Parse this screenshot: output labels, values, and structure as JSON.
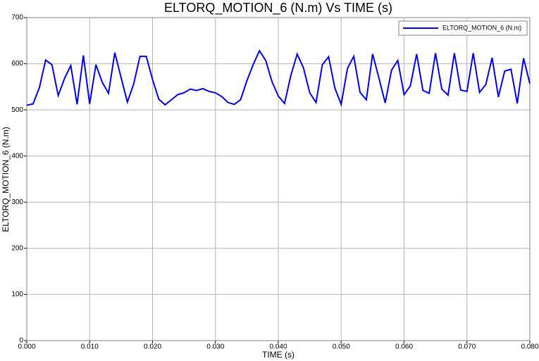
{
  "chart_data": {
    "type": "line",
    "title": "ELTORQ_MOTION_6  (N.m) Vs TIME (s)",
    "x_label": "TIME (s)",
    "y_label": "ELTORQ_MOTION_6  (N.m)",
    "x": [
      0,
      0.001,
      0.002,
      0.003,
      0.004,
      0.005,
      0.006,
      0.007,
      0.008,
      0.009,
      0.01,
      0.011,
      0.012,
      0.013,
      0.014,
      0.015,
      0.016,
      0.017,
      0.018,
      0.019,
      0.02,
      0.021,
      0.022,
      0.023,
      0.024,
      0.025,
      0.026,
      0.027,
      0.028,
      0.029,
      0.03,
      0.031,
      0.032,
      0.033,
      0.034,
      0.035,
      0.036,
      0.037,
      0.038,
      0.039,
      0.04,
      0.041,
      0.042,
      0.043,
      0.044,
      0.045,
      0.046,
      0.047,
      0.048,
      0.049,
      0.05,
      0.051,
      0.052,
      0.053,
      0.054,
      0.055,
      0.056,
      0.057,
      0.058,
      0.059,
      0.06,
      0.061,
      0.062,
      0.063,
      0.064,
      0.065,
      0.066,
      0.067,
      0.068,
      0.069,
      0.07,
      0.071,
      0.072,
      0.073,
      0.074,
      0.075,
      0.076,
      0.077,
      0.078,
      0.079,
      0.08
    ],
    "series": [
      {
        "name": "ELTORQ_MOTION_6 (N.m)",
        "color": "#0000e6",
        "values": [
          510,
          513,
          548,
          608,
          598,
          531,
          568,
          596,
          512,
          618,
          513,
          598,
          560,
          536,
          624,
          570,
          517,
          556,
          616,
          616,
          566,
          523,
          511,
          522,
          533,
          537,
          545,
          542,
          546,
          540,
          537,
          529,
          516,
          512,
          522,
          563,
          598,
          628,
          607,
          561,
          530,
          514,
          575,
          621,
          591,
          537,
          516,
          598,
          615,
          547,
          512,
          590,
          616,
          538,
          522,
          621,
          569,
          515,
          586,
          607,
          533,
          552,
          621,
          542,
          536,
          623,
          545,
          532,
          623,
          543,
          540,
          623,
          538,
          555,
          613,
          528,
          584,
          588,
          514,
          612,
          557
        ]
      }
    ],
    "xlim": [
      0,
      0.08
    ],
    "ylim": [
      0,
      700
    ],
    "xticks": [
      {
        "value": 0,
        "label": "0.000"
      },
      {
        "value": 0.01,
        "label": "0.010"
      },
      {
        "value": 0.02,
        "label": "0.020"
      },
      {
        "value": 0.03,
        "label": "0.030"
      },
      {
        "value": 0.04,
        "label": "0.040"
      },
      {
        "value": 0.05,
        "label": "0.050"
      },
      {
        "value": 0.06,
        "label": "0.060"
      },
      {
        "value": 0.07,
        "label": "0.070"
      },
      {
        "value": 0.08,
        "label": "0.080"
      }
    ],
    "yticks": [
      0,
      100,
      200,
      300,
      400,
      500,
      600,
      700
    ],
    "grid": true,
    "legend": "top-right"
  }
}
